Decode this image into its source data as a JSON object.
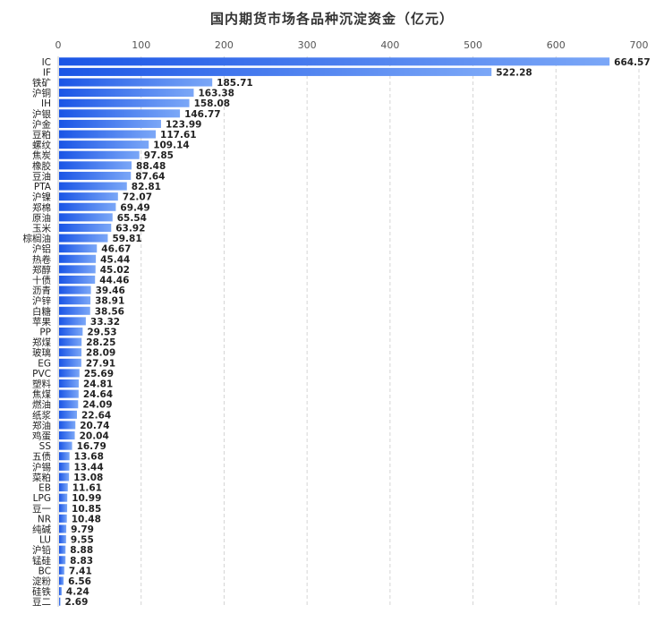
{
  "chart_data": {
    "type": "bar",
    "orientation": "horizontal",
    "title": "国内期货市场各品种沉淀资金（亿元）",
    "xlim": [
      0,
      700
    ],
    "x_ticks": [
      0,
      100,
      200,
      300,
      400,
      500,
      600,
      700
    ],
    "grid": true,
    "categories": [
      "IC",
      "IF",
      "铁矿",
      "沪铜",
      "IH",
      "沪银",
      "沪金",
      "豆粕",
      "螺纹",
      "焦炭",
      "橡胶",
      "豆油",
      "PTA",
      "沪镍",
      "郑棉",
      "原油",
      "玉米",
      "棕榈油",
      "沪铝",
      "热卷",
      "郑醇",
      "十债",
      "沥青",
      "沪锌",
      "白糖",
      "苹果",
      "PP",
      "郑煤",
      "玻璃",
      "EG",
      "PVC",
      "塑料",
      "焦煤",
      "燃油",
      "纸浆",
      "郑油",
      "鸡蛋",
      "SS",
      "五债",
      "沪锡",
      "菜粕",
      "EB",
      "LPG",
      "豆一",
      "NR",
      "纯碱",
      "LU",
      "沪铅",
      "锰硅",
      "BC",
      "淀粉",
      "硅铁",
      "豆二"
    ],
    "values": [
      664.57,
      522.28,
      185.71,
      163.38,
      158.08,
      146.77,
      123.99,
      117.61,
      109.14,
      97.85,
      88.48,
      87.64,
      82.81,
      72.07,
      69.49,
      65.54,
      63.92,
      59.81,
      46.67,
      45.44,
      45.02,
      44.46,
      39.46,
      38.91,
      38.56,
      33.32,
      29.53,
      28.25,
      28.09,
      27.91,
      25.69,
      24.81,
      24.64,
      24.09,
      22.64,
      20.74,
      20.04,
      16.79,
      13.68,
      13.44,
      13.08,
      11.61,
      10.99,
      10.85,
      10.48,
      9.79,
      9.55,
      8.88,
      8.83,
      7.41,
      6.56,
      4.24,
      2.69
    ],
    "value_labels": [
      "664.57",
      "522.28",
      "185.71",
      "163.38",
      "158.08",
      "146.77",
      "123.99",
      "117.61",
      "109.14",
      "97.85",
      "88.48",
      "87.64",
      "82.81",
      "72.07",
      "69.49",
      "65.54",
      "63.92",
      "59.81",
      "46.67",
      "45.44",
      "45.02",
      "44.46",
      "39.46",
      "38.91",
      "38.56",
      "33.32",
      "29.53",
      "28.25",
      "28.09",
      "27.91",
      "25.69",
      "24.81",
      "24.64",
      "24.09",
      "22.64",
      "20.74",
      "20.04",
      "16.79",
      "13.68",
      "13.44",
      "13.08",
      "11.61",
      "10.99",
      "10.85",
      "10.48",
      "9.79",
      "9.55",
      "8.88",
      "8.83",
      "7.41",
      "6.56",
      "4.24",
      "2.69"
    ],
    "colors": {
      "bar_start": "#1a55e6",
      "bar_end": "#7ba7f7",
      "grid": "#d4d4d4",
      "axis": "#c8c8c8",
      "tick_text": "#555555",
      "label_text": "#222222"
    }
  }
}
